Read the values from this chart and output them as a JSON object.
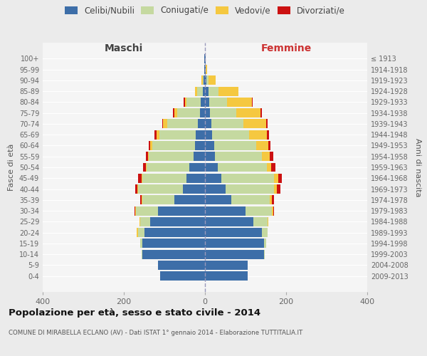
{
  "age_groups": [
    "0-4",
    "5-9",
    "10-14",
    "15-19",
    "20-24",
    "25-29",
    "30-34",
    "35-39",
    "40-44",
    "45-49",
    "50-54",
    "55-59",
    "60-64",
    "65-69",
    "70-74",
    "75-79",
    "80-84",
    "85-89",
    "90-94",
    "95-99",
    "100+"
  ],
  "birth_years": [
    "2009-2013",
    "2004-2008",
    "1999-2003",
    "1994-1998",
    "1989-1993",
    "1984-1988",
    "1979-1983",
    "1974-1978",
    "1969-1973",
    "1964-1968",
    "1959-1963",
    "1954-1958",
    "1949-1953",
    "1944-1948",
    "1939-1943",
    "1934-1938",
    "1929-1933",
    "1924-1928",
    "1919-1923",
    "1914-1918",
    "≤ 1913"
  ],
  "maschi_celibe": [
    110,
    115,
    155,
    155,
    150,
    135,
    115,
    75,
    55,
    45,
    38,
    28,
    25,
    22,
    18,
    13,
    10,
    5,
    3,
    2,
    2
  ],
  "maschi_coniugato": [
    0,
    0,
    2,
    5,
    15,
    25,
    55,
    80,
    110,
    110,
    105,
    110,
    105,
    90,
    75,
    55,
    35,
    15,
    3,
    0,
    0
  ],
  "maschi_vedovo": [
    0,
    0,
    0,
    0,
    3,
    2,
    2,
    2,
    2,
    2,
    2,
    3,
    5,
    8,
    10,
    8,
    5,
    5,
    2,
    0,
    0
  ],
  "maschi_divorziato": [
    0,
    0,
    0,
    0,
    0,
    0,
    2,
    3,
    5,
    8,
    8,
    5,
    3,
    5,
    3,
    3,
    3,
    0,
    0,
    0,
    0
  ],
  "femmine_celibe": [
    105,
    105,
    145,
    145,
    140,
    120,
    100,
    65,
    50,
    40,
    32,
    25,
    22,
    18,
    15,
    12,
    10,
    8,
    3,
    2,
    2
  ],
  "femmine_coniugata": [
    0,
    0,
    2,
    5,
    15,
    35,
    65,
    95,
    120,
    130,
    120,
    115,
    105,
    90,
    80,
    65,
    45,
    25,
    5,
    0,
    0
  ],
  "femmine_vedova": [
    0,
    0,
    0,
    0,
    0,
    2,
    3,
    5,
    8,
    10,
    12,
    20,
    30,
    45,
    55,
    60,
    60,
    50,
    18,
    3,
    0
  ],
  "femmine_divorziata": [
    0,
    0,
    0,
    0,
    0,
    0,
    2,
    5,
    8,
    10,
    10,
    8,
    5,
    5,
    5,
    3,
    3,
    0,
    0,
    0,
    0
  ],
  "colors": {
    "celibe": "#3d6ea8",
    "coniugato": "#c5d9a0",
    "vedovo": "#f5c840",
    "divorziato": "#cc1111"
  },
  "title": "Popolazione per età, sesso e stato civile - 2014",
  "subtitle": "COMUNE DI MIRABELLA ECLANO (AV) - Dati ISTAT 1° gennaio 2014 - Elaborazione TUTTITALIA.IT",
  "xlabel_left": "Maschi",
  "xlabel_right": "Femmine",
  "ylabel_left": "Fasce di età",
  "ylabel_right": "Anni di nascita",
  "xlim": 400,
  "bg_color": "#ebebeb",
  "plot_bg_color": "#f5f5f5"
}
